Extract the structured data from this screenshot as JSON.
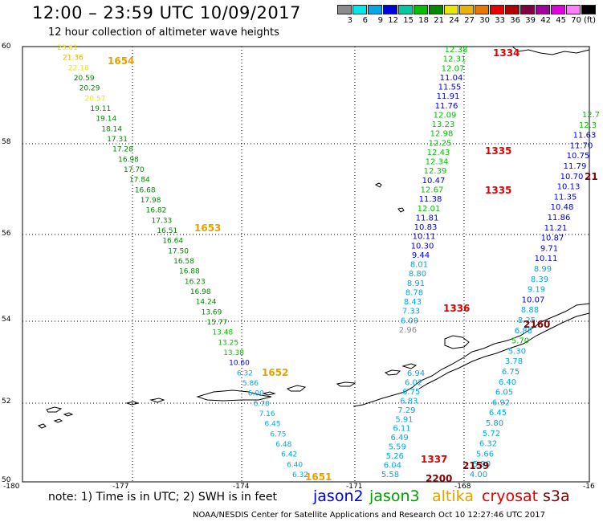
{
  "header": {
    "title": "12:00  – 23:59 UTC 10/09/2017",
    "subtitle": "12 hour collection of altimeter wave heights"
  },
  "colorbar": {
    "colors": [
      "#8c8c8c",
      "#00e8e8",
      "#00a8e8",
      "#0000e0",
      "#00c8a0",
      "#00c000",
      "#008800",
      "#e8e800",
      "#e8b400",
      "#e87800",
      "#e80000",
      "#b00000",
      "#800040",
      "#a000a0",
      "#e000e0",
      "#ff80ff",
      "#000000"
    ],
    "labels": [
      "3",
      "6",
      "9",
      "12",
      "15",
      "18",
      "21",
      "24",
      "27",
      "30",
      "33",
      "36",
      "39",
      "42",
      "45",
      "70"
    ],
    "unit": "(ft)"
  },
  "axes": {
    "y_labels": [
      "60",
      "58",
      "56",
      "54",
      "52",
      "50"
    ],
    "x_labels": [
      "-180",
      "-177",
      "-174",
      "-171",
      "-168",
      "-16"
    ]
  },
  "tracks": [
    {
      "values": [
        "23.61",
        "21.36",
        "22.18",
        "20.59",
        "20.29",
        "20.57",
        "19.11",
        "19.14",
        "18.14",
        "17.31",
        "17.28",
        "16.98",
        "17.70",
        "17.84",
        "16.68",
        "17.98",
        "16.82",
        "17.33",
        "16.51",
        "16.64",
        "17.50",
        "16.58",
        "16.88",
        "16.23",
        "16.98",
        "14.24",
        "13.69",
        "15.77",
        "13.48",
        "13.25",
        "13.38",
        "10.60",
        "6.32",
        "5.86",
        "6.00",
        "6.70",
        "7.16",
        "6.45",
        "6.75",
        "6.48",
        "6.42",
        "6.40",
        "6.32"
      ],
      "colors": [
        "#e8e800",
        "#e8b400",
        "#e8e800",
        "#008800",
        "#008800",
        "#e8e800",
        "#008800",
        "#008800",
        "#008800",
        "#008800",
        "#008800",
        "#008800",
        "#008800",
        "#008800",
        "#008800",
        "#008800",
        "#008800",
        "#008800",
        "#008800",
        "#008800",
        "#008800",
        "#008800",
        "#008800",
        "#008800",
        "#008800",
        "#008800",
        "#008800",
        "#008800",
        "#00c000",
        "#00c000",
        "#00c000",
        "#0000e0",
        "#00a8e8",
        "#00a8e8",
        "#00a8e8",
        "#00a8e8",
        "#00a8e8",
        "#00a8e8",
        "#00a8e8",
        "#00a8e8",
        "#00a8e8",
        "#00a8e8",
        "#00a8e8"
      ]
    },
    {
      "values": [
        "12.38",
        "12.31",
        "12.07",
        "11.04",
        "11.55",
        "11.91",
        "11.76",
        "12.09",
        "13.23",
        "12.98",
        "12.25",
        "12.43",
        "12.34",
        "12.39",
        "10.47",
        "12.67",
        "11.38",
        "12.01",
        "11.81",
        "10.83",
        "10.11",
        "10.30",
        "9.44",
        "8.01",
        "8.80",
        "8.91",
        "8.78",
        "8.43",
        "7.33",
        "6.09",
        "2.96"
      ],
      "colors": [
        "#00c000",
        "#00c000",
        "#00c000",
        "#0000e0",
        "#0000e0",
        "#0000e0",
        "#0000e0",
        "#00c000",
        "#00c000",
        "#00c000",
        "#00c000",
        "#00c000",
        "#00c000",
        "#00c000",
        "#0000e0",
        "#00c000",
        "#0000e0",
        "#00c000",
        "#0000e0",
        "#0000e0",
        "#0000e0",
        "#0000e0",
        "#0000e0",
        "#00a8e8",
        "#00a8e8",
        "#00a8e8",
        "#00a8e8",
        "#00a8e8",
        "#00a8e8",
        "#00a8e8",
        "#8c8c8c"
      ]
    },
    {
      "values": [
        "6.94",
        "6.02",
        "6.75",
        "6.83",
        "7.29",
        "5.91",
        "6.11",
        "6.49",
        "5.59",
        "5.26",
        "6.04",
        "5.58"
      ],
      "colors": [
        "#00a8e8",
        "#00a8e8",
        "#00a8e8",
        "#00a8e8",
        "#00a8e8",
        "#00a8e8",
        "#00a8e8",
        "#00a8e8",
        "#00a8e8",
        "#00a8e8",
        "#00a8e8",
        "#00a8e8"
      ]
    },
    {
      "values": [
        "12.7",
        "12.3",
        "11.63",
        "11.70",
        "10.75",
        "11.79",
        "10.70",
        "10.13",
        "11.35",
        "10.48",
        "11.86",
        "11.21",
        "10.87",
        "9.71",
        "10.11",
        "8.99",
        "8.39",
        "9.19",
        "10.07",
        "8.88",
        "8.25",
        "6.88",
        "5.70",
        "5.30",
        "3.78",
        "6.75",
        "6.40",
        "6.05",
        "6.92",
        "6.45",
        "5.80",
        "5.72",
        "6.32",
        "5.66",
        "5.90",
        "4.00"
      ],
      "colors": [
        "#00c000",
        "#00c000",
        "#0000e0",
        "#0000e0",
        "#0000e0",
        "#0000e0",
        "#0000e0",
        "#0000e0",
        "#0000e0",
        "#0000e0",
        "#0000e0",
        "#0000e0",
        "#0000e0",
        "#0000e0",
        "#0000e0",
        "#00a8e8",
        "#00a8e8",
        "#00a8e8",
        "#0000e0",
        "#00a8e8",
        "#00a8e8",
        "#00a8e8",
        "#00c000",
        "#00a8e8",
        "#00a8e8",
        "#00a8e8",
        "#00a8e8",
        "#00a8e8",
        "#00a8e8",
        "#00a8e8",
        "#00a8e8",
        "#00a8e8",
        "#00a8e8",
        "#00a8e8",
        "#00a8e8",
        "#00a8e8"
      ]
    }
  ],
  "time_labels": [
    {
      "text": "1654",
      "color": "#e8a000"
    },
    {
      "text": "1653",
      "color": "#e8a000"
    },
    {
      "text": "1652",
      "color": "#e8a000"
    },
    {
      "text": "1651",
      "color": "#e8a000"
    },
    {
      "text": "1334",
      "color": "#e00000"
    },
    {
      "text": "1335",
      "color": "#e00000"
    },
    {
      "text": "1335",
      "color": "#e00000"
    },
    {
      "text": "1336",
      "color": "#e00000"
    },
    {
      "text": "1337",
      "color": "#e00000"
    },
    {
      "text": "2159",
      "color": "#800000"
    },
    {
      "text": "2200",
      "color": "#800000"
    },
    {
      "text": "2160",
      "color": "#800000"
    },
    {
      "text": "21",
      "color": "#800000"
    }
  ],
  "footer": {
    "note": "note:  1) Time is in UTC; 2) SWH is in feet",
    "legend": [
      {
        "name": "jason2",
        "color": "#0000e0"
      },
      {
        "name": "jason3",
        "color": "#00a000"
      },
      {
        "name": "altika",
        "color": "#e8a000"
      },
      {
        "name": "cryosat",
        "color": "#e00000"
      },
      {
        "name": "s3a",
        "color": "#800000"
      }
    ],
    "credit": "NOAA/NESDIS Center for Satellite Applications and Research    Oct 10 12:27:46 UTC 2017"
  }
}
